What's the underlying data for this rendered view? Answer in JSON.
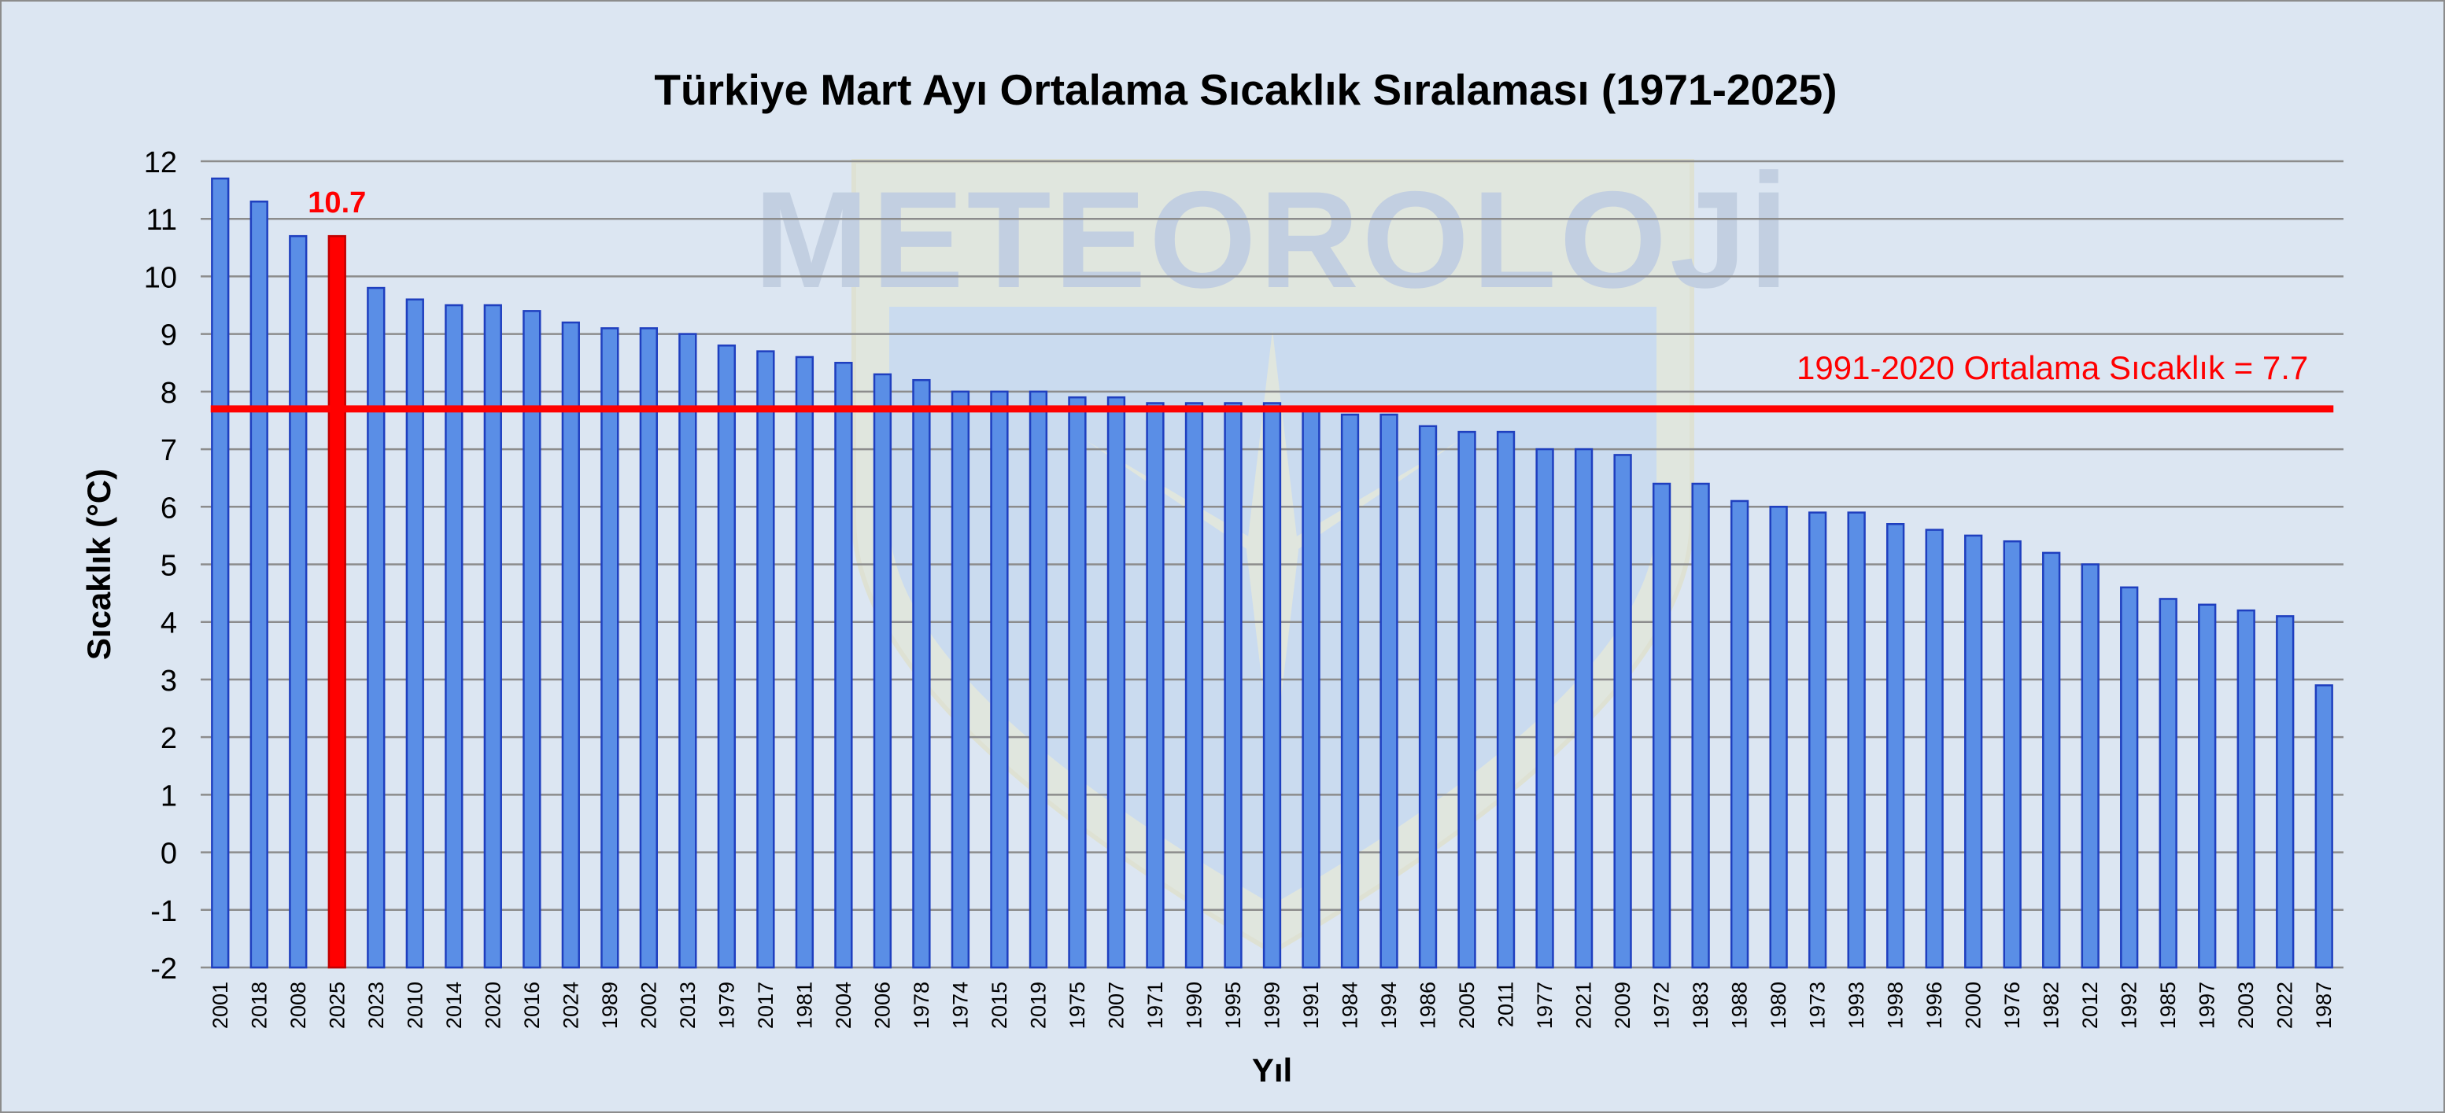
{
  "chart_data": {
    "type": "bar",
    "title": "Türkiye Mart Ayı Ortalama Sıcaklık Sıralaması (1971-2025)",
    "xlabel": "Yıl",
    "ylabel": "Sıcaklık (°C)",
    "ylim": [
      -2,
      12
    ],
    "yticks": [
      -2,
      -1,
      0,
      1,
      2,
      3,
      4,
      5,
      6,
      7,
      8,
      9,
      10,
      11,
      12
    ],
    "grid": true,
    "categories": [
      "2001",
      "2018",
      "2008",
      "2025",
      "2023",
      "2010",
      "2014",
      "2020",
      "2016",
      "2024",
      "1989",
      "2002",
      "2013",
      "1979",
      "2017",
      "1981",
      "2004",
      "2006",
      "1978",
      "1974",
      "2015",
      "2019",
      "1975",
      "2007",
      "1971",
      "1990",
      "1995",
      "1999",
      "1991",
      "1984",
      "1994",
      "1986",
      "2005",
      "2011",
      "1977",
      "2021",
      "2009",
      "1972",
      "1983",
      "1988",
      "1980",
      "1973",
      "1993",
      "1998",
      "1996",
      "2000",
      "1976",
      "1982",
      "2012",
      "1992",
      "1985",
      "1997",
      "2003",
      "2022",
      "1987"
    ],
    "values": [
      11.7,
      11.3,
      10.7,
      10.7,
      9.8,
      9.6,
      9.5,
      9.5,
      9.4,
      9.2,
      9.1,
      9.1,
      9.0,
      8.8,
      8.7,
      8.6,
      8.5,
      8.3,
      8.2,
      8.0,
      8.0,
      8.0,
      7.9,
      7.9,
      7.8,
      7.8,
      7.8,
      7.8,
      7.7,
      7.6,
      7.6,
      7.4,
      7.3,
      7.3,
      7.0,
      7.0,
      6.9,
      6.4,
      6.4,
      6.1,
      6.0,
      5.9,
      5.9,
      5.7,
      5.6,
      5.5,
      5.4,
      5.2,
      5.0,
      4.6,
      4.4,
      4.3,
      4.2,
      4.1,
      2.9
    ],
    "highlight": {
      "category": "2025",
      "value": 10.7,
      "label": "10.7",
      "color": "#ff0000"
    },
    "reference_line": {
      "value": 7.7,
      "label": "1991-2020 Ortalama Sıcaklık = 7.7",
      "color": "#ff0000"
    },
    "colors": {
      "bar_fill": "#5a8ee6",
      "bar_stroke": "#1f3fbf",
      "grid": "#8c8c8c",
      "background": "#dce6f2",
      "text": "#000000"
    },
    "watermark": "METEOROLOJİ"
  }
}
